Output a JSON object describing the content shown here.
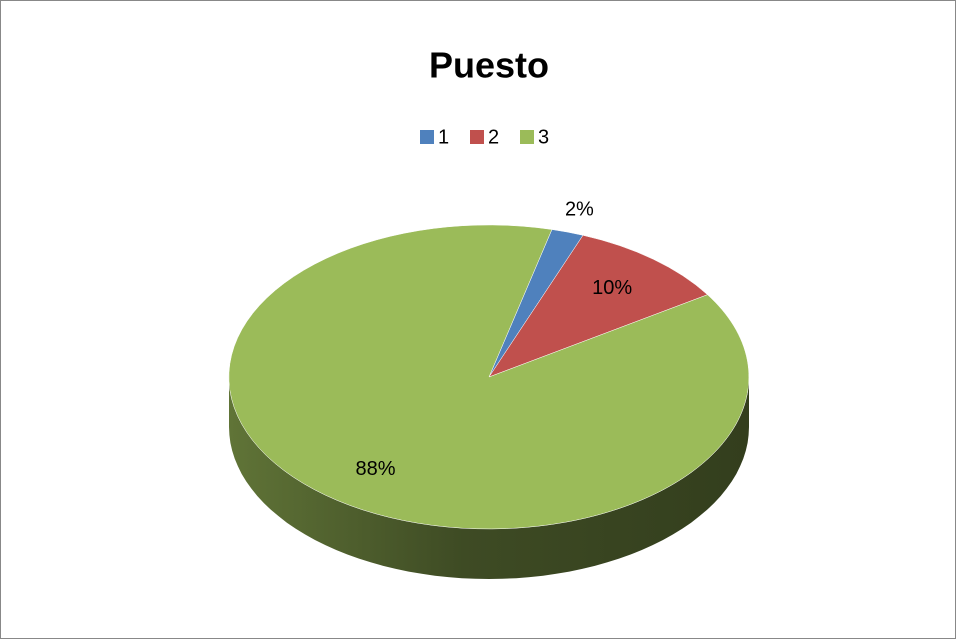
{
  "chart_data": {
    "type": "pie",
    "title": "Puesto",
    "categories": [
      "1",
      "2",
      "3"
    ],
    "values": [
      2,
      10,
      88
    ],
    "value_labels": [
      "2%",
      "10%",
      "88%"
    ],
    "colors": [
      "#4f81bd",
      "#c0504d",
      "#9bbb59"
    ],
    "legend": "top",
    "three_d": true
  }
}
